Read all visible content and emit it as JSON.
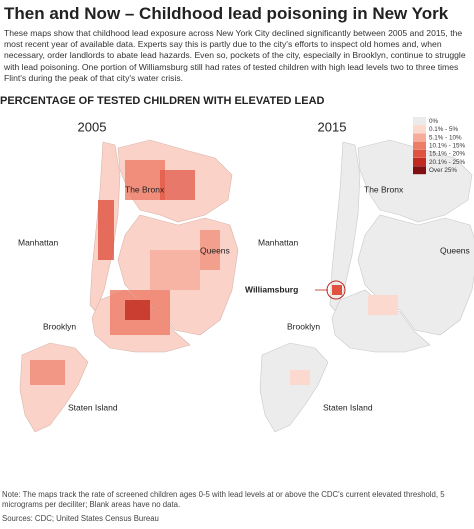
{
  "header": {
    "title": "Then and Now – Childhood lead poisoning in New York",
    "intro": "These maps show that childhood lead exposure across New York City declined significantly between 2005 and 2015, the most recent year of available data. Experts say this is partly due to the city's efforts to inspect old homes and, when necessary, order landlords to abate lead hazards. Even so, pockets of the city, especially in Brooklyn, continue to struggle with lead poisoning. One portion of Williamsburg still had rates of tested children with high lead levels two to three times Flint's during the peak of that city's water crisis."
  },
  "subtitle": "PERCENTAGE OF TESTED CHILDREN WITH ELEVATED LEAD",
  "maps": [
    {
      "year": "2005",
      "labels": {
        "bronx": "The Bronx",
        "manhattan": "Manhattan",
        "queens": "Queens",
        "brooklyn": "Brooklyn",
        "staten_island": "Staten Island"
      }
    },
    {
      "year": "2015",
      "labels": {
        "bronx": "The Bronx",
        "manhattan": "Manhattan",
        "queens": "Queens",
        "brooklyn": "Brooklyn",
        "staten_island": "Staten Island",
        "williamsburg": "Williamsburg"
      }
    }
  ],
  "legend": [
    {
      "label": "0%",
      "color": "#ebebeb"
    },
    {
      "label": "0.1% - 5%",
      "color": "#fcd9cf"
    },
    {
      "label": "5.1% - 10%",
      "color": "#f6ab9b"
    },
    {
      "label": "10.1% - 15%",
      "color": "#ee7d68"
    },
    {
      "label": "15.1% - 20%",
      "color": "#e05140"
    },
    {
      "label": "20.1% - 25%",
      "color": "#c02a20"
    },
    {
      "label": "Over 25%",
      "color": "#7f0f10"
    }
  ],
  "footer": {
    "note": "Note: The maps track the rate of screened children ages 0-5 with lead levels at or above the CDC's current elevated threshold, 5 micrograms per deciliter; Blank areas have no data.",
    "sources": "Sources: CDC; United States Census Bureau"
  }
}
